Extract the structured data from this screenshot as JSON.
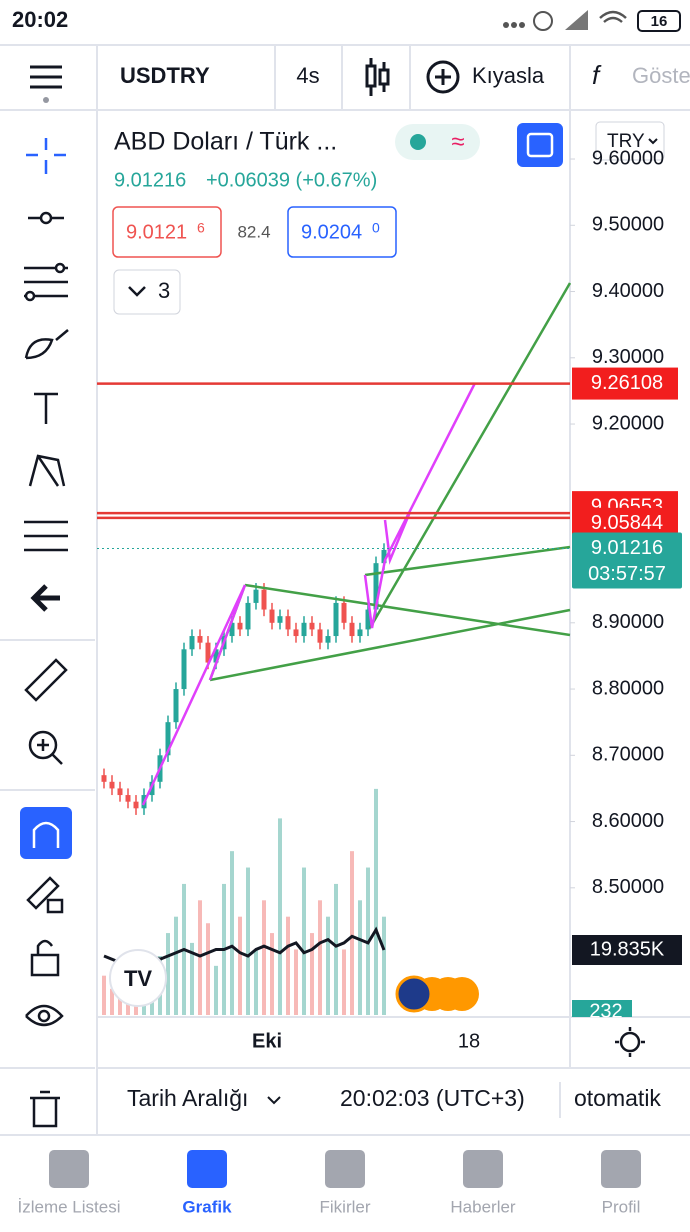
{
  "status_bar": {
    "time": "20:02",
    "battery": "16"
  },
  "toolbar": {
    "symbol": "USDTRY",
    "interval": "4s",
    "compare": "Kıyasla",
    "indicators": "Göste"
  },
  "symbol_header": {
    "title": "ABD Doları / Türk ...",
    "price": "9.01216",
    "change": "+0.06039 (+0.67%)",
    "bid_main": "9.0121",
    "bid_pip": "6",
    "spread": "82.4",
    "ask_main": "9.0204",
    "ask_pip": "0",
    "currency": "TRY",
    "collapsed_count": "3"
  },
  "chart_data": {
    "type": "candlestick",
    "ylim": [
      8.305,
      9.674
    ],
    "yticks": [
      {
        "value": 8.5,
        "label": "8.50000"
      },
      {
        "value": 8.6,
        "label": "8.60000"
      },
      {
        "value": 8.7,
        "label": "8.70000"
      },
      {
        "value": 8.8,
        "label": "8.80000"
      },
      {
        "value": 8.9,
        "label": "8.90000"
      },
      {
        "value": 9.2,
        "label": "9.20000"
      },
      {
        "value": 9.3,
        "label": "9.30000"
      },
      {
        "value": 9.4,
        "label": "9.40000"
      },
      {
        "value": 9.5,
        "label": "9.50000"
      },
      {
        "value": 9.6,
        "label": "9.60000"
      }
    ],
    "x_labels": [
      "Eki",
      "18"
    ],
    "up_color": "#26a69a",
    "down_color": "#ef5350",
    "open": [
      8.67,
      8.66,
      8.65,
      8.64,
      8.63,
      8.62,
      8.64,
      8.66,
      8.7,
      8.75,
      8.8,
      8.86,
      8.88,
      8.87,
      8.84,
      8.86,
      8.88,
      8.9,
      8.89,
      8.93,
      8.95,
      8.92,
      8.9,
      8.91,
      8.89,
      8.88,
      8.9,
      8.89,
      8.87,
      8.88,
      8.93,
      8.9,
      8.88,
      8.89,
      8.92,
      8.99
    ],
    "high": [
      8.68,
      8.67,
      8.66,
      8.65,
      8.64,
      8.65,
      8.67,
      8.71,
      8.76,
      8.81,
      8.87,
      8.89,
      8.89,
      8.88,
      8.87,
      8.89,
      8.91,
      8.91,
      8.94,
      8.96,
      8.96,
      8.93,
      8.92,
      8.92,
      8.9,
      8.91,
      8.91,
      8.9,
      8.89,
      8.94,
      8.94,
      8.91,
      8.9,
      8.93,
      9.0,
      9.02
    ],
    "low": [
      8.65,
      8.64,
      8.63,
      8.62,
      8.61,
      8.61,
      8.63,
      8.65,
      8.69,
      8.74,
      8.79,
      8.85,
      8.86,
      8.83,
      8.83,
      8.85,
      8.87,
      8.88,
      8.88,
      8.92,
      8.91,
      8.89,
      8.89,
      8.88,
      8.87,
      8.87,
      8.88,
      8.86,
      8.86,
      8.87,
      8.89,
      8.87,
      8.87,
      8.88,
      8.91,
      8.98
    ],
    "close": [
      8.66,
      8.65,
      8.64,
      8.63,
      8.62,
      8.64,
      8.66,
      8.7,
      8.75,
      8.8,
      8.86,
      8.88,
      8.87,
      8.84,
      8.86,
      8.88,
      8.9,
      8.89,
      8.93,
      8.95,
      8.92,
      8.9,
      8.91,
      8.89,
      8.88,
      8.9,
      8.89,
      8.87,
      8.88,
      8.93,
      8.9,
      8.88,
      8.89,
      8.92,
      8.99,
      9.01
    ],
    "volume": [
      12,
      8,
      15,
      10,
      20,
      14,
      9,
      18,
      25,
      30,
      40,
      22,
      35,
      28,
      15,
      40,
      50,
      30,
      45,
      20,
      35,
      25,
      60,
      30,
      20,
      45,
      25,
      35,
      30,
      40,
      20,
      50,
      35,
      45,
      69,
      30
    ],
    "volume_ma": [
      18,
      17,
      16,
      18,
      17,
      19,
      18,
      17,
      18,
      19,
      20,
      19,
      18,
      19,
      20,
      20,
      21,
      19,
      18,
      20,
      21,
      20,
      19,
      21,
      22,
      19,
      20,
      22,
      23,
      21,
      22,
      24,
      23,
      22,
      26,
      19.835
    ],
    "volume_ma_label": "19.835K",
    "volume_lower_label": "232",
    "levels": [
      9.26108,
      9.06553,
      9.05844
    ],
    "last_price": 9.01216,
    "countdown": "03:57:57"
  },
  "bottom_bar": {
    "range": "Tarih Aralığı",
    "time": "20:02:03 (UTC+3)",
    "scale": "otomatik"
  },
  "nav": [
    "İzleme Listesi",
    "Grafik",
    "Fikirler",
    "Haberler",
    "Profil"
  ]
}
